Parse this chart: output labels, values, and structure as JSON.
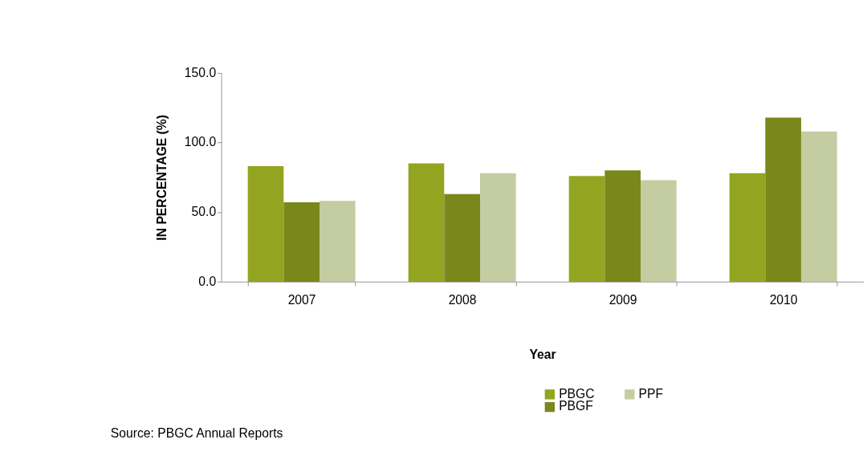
{
  "chart_data": {
    "type": "bar",
    "xlabel": "Year",
    "ylabel": "IN PERCENTAGE (%)",
    "categories": [
      "2007",
      "2008",
      "2009",
      "2010"
    ],
    "series": [
      {
        "name": "PBGC",
        "color": "#93a520",
        "values": [
          83,
          85,
          76,
          78
        ]
      },
      {
        "name": "PBGF",
        "color": "#7a871b",
        "values": [
          57,
          63,
          80,
          118
        ]
      },
      {
        "name": "PPF",
        "color": "#c4cca2",
        "values": [
          58,
          78,
          73,
          108
        ]
      }
    ],
    "ylim": [
      0,
      150
    ],
    "yticks": [
      {
        "value": 0,
        "label": "0.0"
      },
      {
        "value": 50,
        "label": "50.0"
      },
      {
        "value": 100,
        "label": "100.0"
      },
      {
        "value": 150,
        "label": "150.0"
      }
    ],
    "grid": false,
    "legend": "bottom",
    "annotations": [
      "Source: PBGC Annual Reports"
    ]
  }
}
